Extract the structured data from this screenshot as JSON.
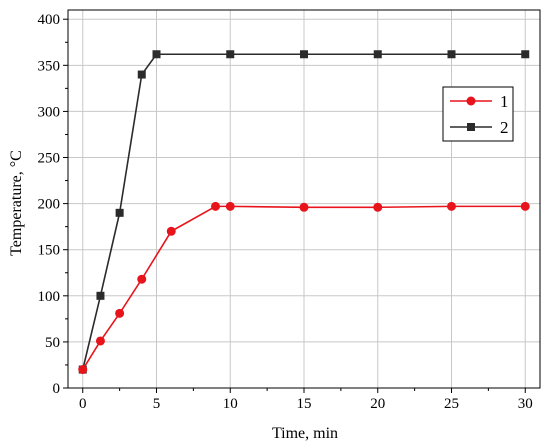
{
  "chart_data": {
    "type": "line",
    "title": "",
    "xlabel": "Time, min",
    "ylabel": "Temperature, °C",
    "xlim": [
      -1,
      31
    ],
    "ylim": [
      0,
      410
    ],
    "x_ticks": [
      0,
      5,
      10,
      15,
      20,
      25,
      30
    ],
    "y_ticks": [
      0,
      50,
      100,
      150,
      200,
      250,
      300,
      350,
      400
    ],
    "grid": true,
    "legend_position": "top-right",
    "series": [
      {
        "name": "1",
        "color": "#e8141c",
        "marker": "circle",
        "x": [
          0,
          1.2,
          2.5,
          4,
          6,
          9,
          10,
          15,
          20,
          25,
          30
        ],
        "y": [
          20,
          51,
          81,
          118,
          170,
          197,
          197,
          196,
          196,
          197,
          197
        ]
      },
      {
        "name": "2",
        "color": "#2b2b2b",
        "marker": "square",
        "x": [
          0,
          1.2,
          2.5,
          4,
          5,
          10,
          15,
          20,
          25,
          30
        ],
        "y": [
          20,
          100,
          190,
          340,
          362,
          362,
          362,
          362,
          362,
          362
        ]
      }
    ]
  }
}
